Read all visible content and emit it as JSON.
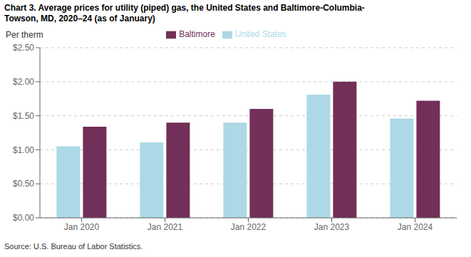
{
  "chart_data": {
    "type": "bar",
    "title": "Chart 3. Average prices for utility (piped) gas, the United States and Baltimore-Columbia-\nTowson, MD, 2020–24 (as of January)",
    "y_label": "Per therm",
    "annotations": [
      "Source: U.S. Bureau of Labor Statistics."
    ],
    "categories": [
      "Jan 2020",
      "Jan 2021",
      "Jan 2022",
      "Jan 2023",
      "Jan 2024"
    ],
    "series": [
      {
        "name": "United States",
        "color": "#ADD8E6",
        "values": [
          1.05,
          1.11,
          1.4,
          1.81,
          1.46
        ]
      },
      {
        "name": "Baltimore",
        "color": "#722F57",
        "values": [
          1.34,
          1.4,
          1.6,
          2.0,
          1.72
        ]
      }
    ],
    "ylim": [
      0,
      2.5
    ],
    "yticks": [
      {
        "value": 0,
        "label": "$0.00"
      },
      {
        "value": 0.5,
        "label": "$0.50"
      },
      {
        "value": 1,
        "label": "$1.00"
      },
      {
        "value": 1.5,
        "label": "$1.50"
      },
      {
        "value": 2,
        "label": "$2.00"
      },
      {
        "value": 2.5,
        "label": "$2.50"
      }
    ],
    "grid": true,
    "legend": "top"
  }
}
